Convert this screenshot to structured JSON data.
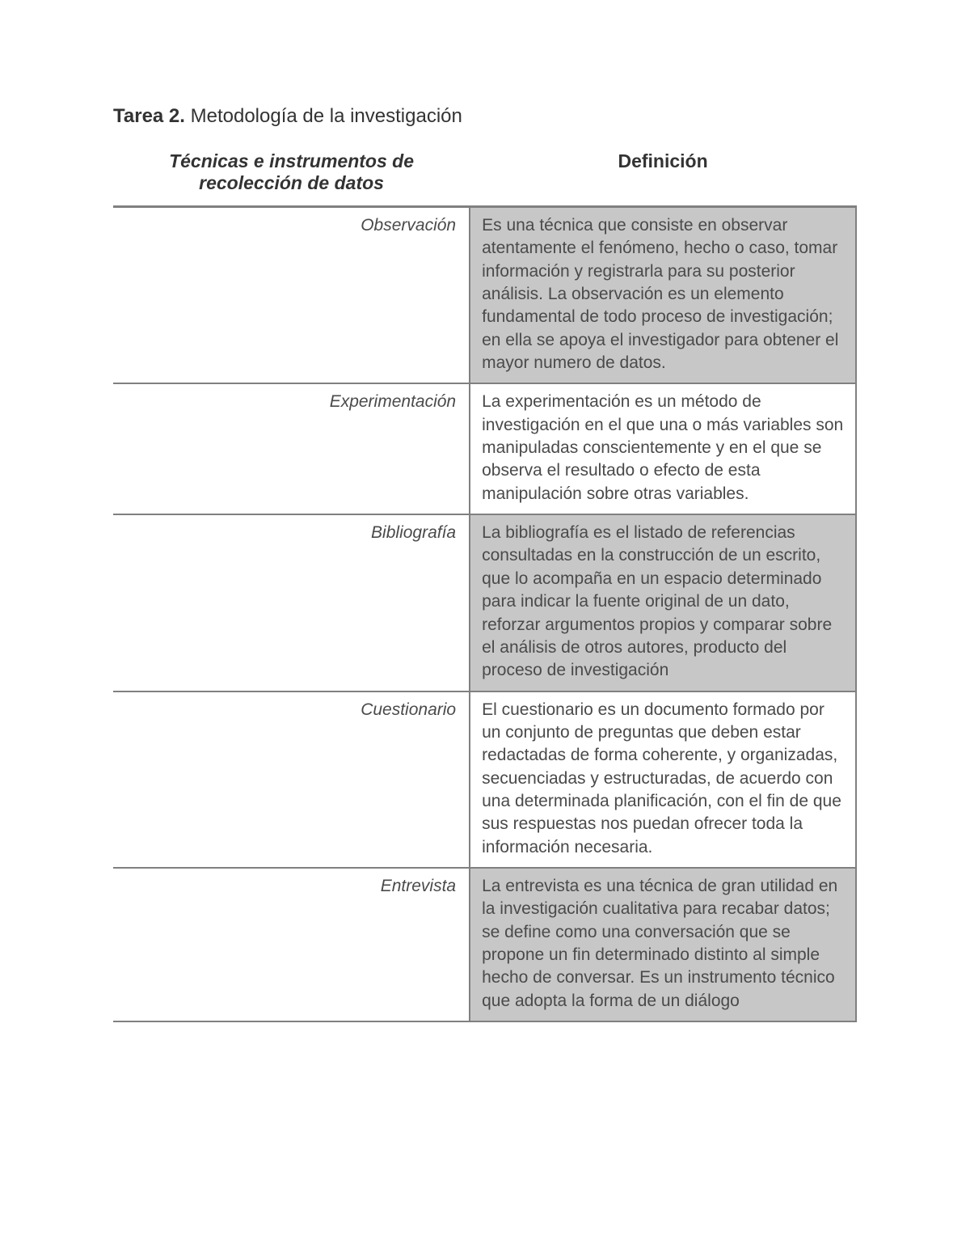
{
  "title": {
    "bold": "Tarea 2.",
    "rest": " Metodología de la investigación"
  },
  "headers": {
    "left": "Técnicas e instrumentos de recolección de datos",
    "right": "Definición"
  },
  "rows": [
    {
      "term": "Observación",
      "definition": "Es una técnica que consiste en observar atentamente el fenómeno, hecho o caso, tomar información y registrarla para su posterior análisis. La observación es un elemento fundamental de todo proceso de investigación; en ella se apoya el investigador para obtener el mayor numero de datos.",
      "shaded": true
    },
    {
      "term": "Experimentación",
      "definition": "La experimentación es un método de investigación en el que una o más variables son manipuladas conscientemente y en el que se observa el resultado o efecto de esta manipulación sobre otras variables.",
      "shaded": false
    },
    {
      "term": "Bibliografía",
      "definition": "La bibliografía es el listado de referencias consultadas en la construcción de un escrito, que lo acompaña en un espacio determinado para indicar la fuente original de un dato, reforzar argumentos propios y comparar sobre el análisis de otros autores, producto del proceso de investigación",
      "shaded": true
    },
    {
      "term": "Cuestionario",
      "definition": "El cuestionario es un documento formado por un conjunto de preguntas que deben estar redactadas de forma coherente, y organizadas, secuenciadas y estructuradas, de acuerdo con una determinada planificación, con el fin de que sus respuestas nos puedan ofrecer toda la información necesaria.",
      "shaded": false
    },
    {
      "term": "Entrevista",
      "definition": "La entrevista es una técnica de gran utilidad en la investigación cualitativa para recabar datos; se define como una conversación que se propone un fin determinado distinto al simple hecho de conversar. Es un instrumento técnico que adopta la forma de un diálogo",
      "shaded": true
    }
  ],
  "style": {
    "heading_fontsize": 24,
    "header_fontsize": 23,
    "body_fontsize": 21,
    "text_color": "#4a4a4a",
    "heading_color": "#333333",
    "border_color": "#808080",
    "shade_color": "#c7c7c7",
    "background": "#ffffff",
    "left_col_width_pct": 48,
    "right_col_width_pct": 52,
    "line_height": 1.35
  }
}
